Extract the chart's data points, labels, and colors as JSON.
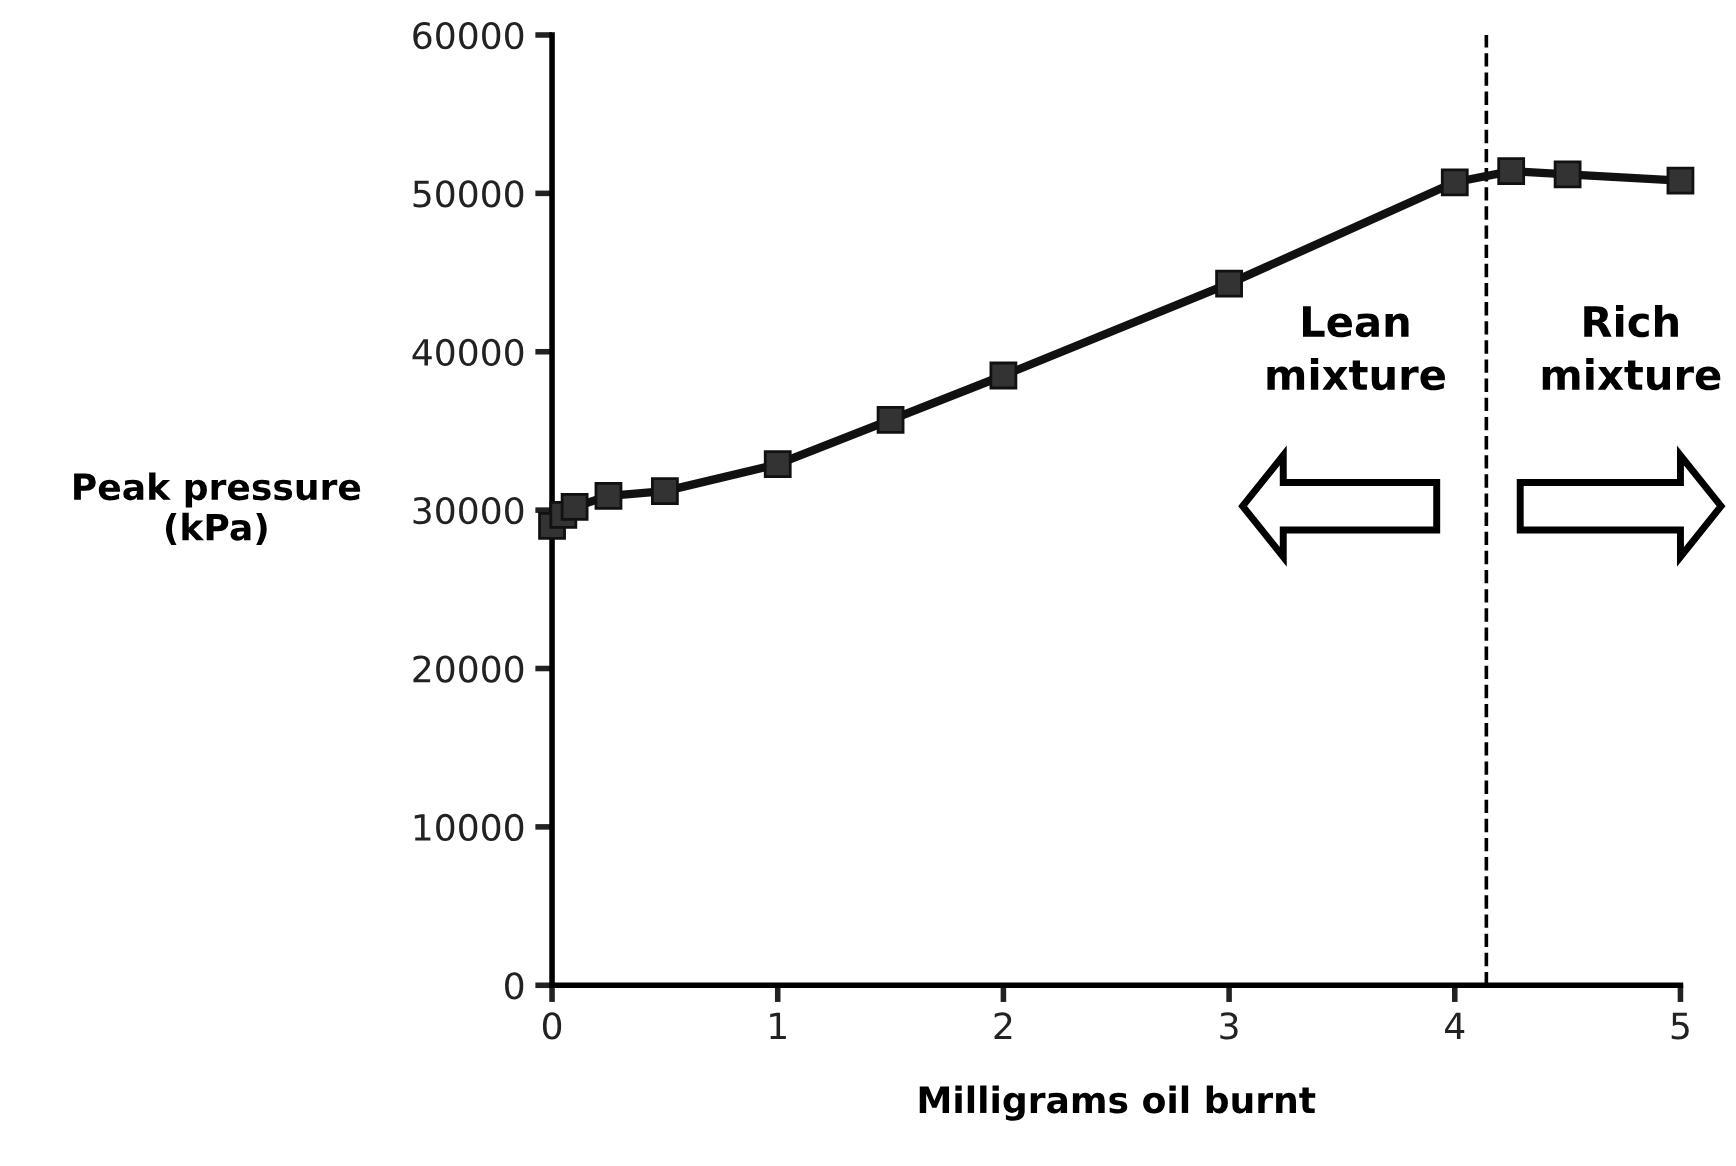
{
  "chart_data": {
    "type": "line",
    "xlabel": "Milligrams oil burnt",
    "ylabel": "Peak pressure\n(kPa)",
    "x": [
      0,
      0.05,
      0.1,
      0.25,
      0.5,
      1,
      1.5,
      2,
      3,
      4,
      4.25,
      4.5,
      5
    ],
    "series": [
      {
        "color": "#111111",
        "values": [
          29000,
          29700,
          30200,
          30900,
          31200,
          32900,
          35700,
          38500,
          44300,
          50700,
          51400,
          51200,
          50800
        ]
      }
    ],
    "marker": "square",
    "line_style": "solid",
    "xlim": [
      0,
      5
    ],
    "xticks": [
      0,
      1,
      2,
      3,
      4,
      5
    ],
    "ylim": [
      0,
      60000
    ],
    "yticks": [
      0,
      10000,
      20000,
      30000,
      40000,
      50000,
      60000
    ],
    "grid": false,
    "legend": false,
    "ref_lines": [
      {
        "axis": "x",
        "value": 4.14,
        "line_style": "dashed",
        "color": "#000000"
      }
    ],
    "annotations": [
      "Lean\nmixture",
      "Rich\nmixture"
    ]
  }
}
